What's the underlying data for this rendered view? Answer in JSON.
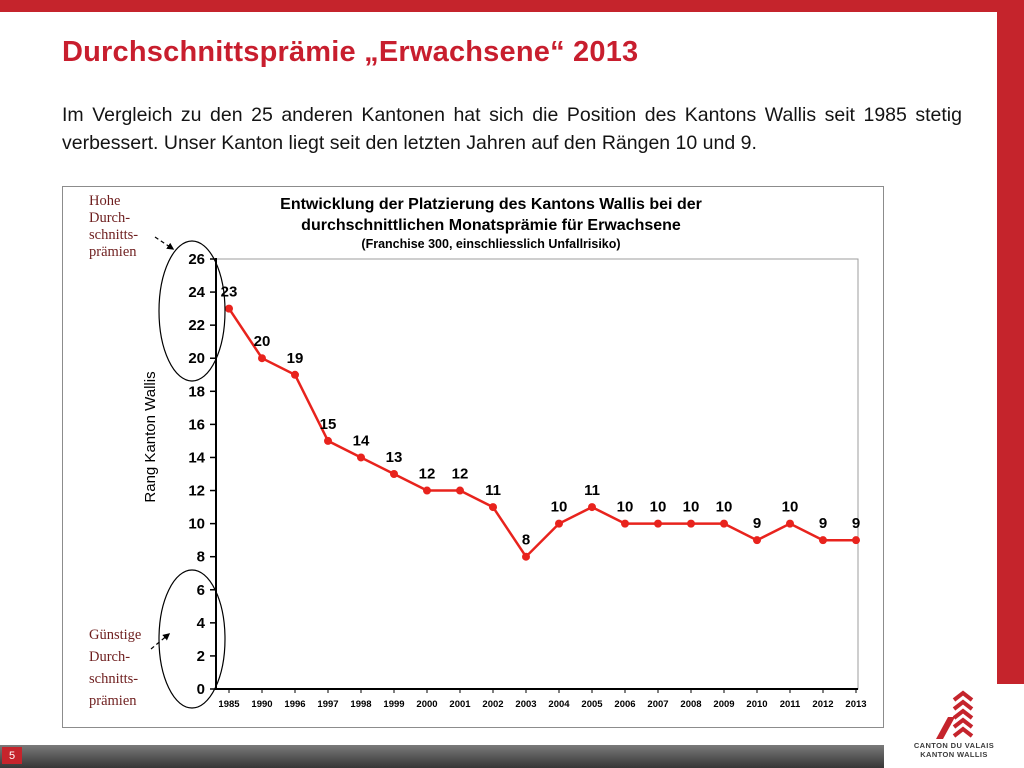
{
  "slide": {
    "title": "Durchschnittsprämie „Erwachsene“ 2013",
    "paragraph": "Im Vergleich zu den 25 anderen Kantonen hat sich die Position des Kantons Wallis seit 1985 stetig verbessert. Unser Kanton liegt seit den letzten Jahren auf den Rängen 10 und 9.",
    "page_number": "5"
  },
  "logo": {
    "line1": "CANTON DU VALAIS",
    "line2": "KANTON WALLIS"
  },
  "colors": {
    "accent_red": "#c5242c",
    "title_red": "#c81e2e",
    "series_red": "#e8231d",
    "annotation_red": "#6e1e1e"
  },
  "chart_data": {
    "type": "line",
    "title_lines": [
      "Entwicklung der Platzierung des Kantons Wallis bei der",
      "durchschnittlichen Monatsprämie für Erwachsene"
    ],
    "subtitle": "(Franchise 300, einschliesslich Unfallrisiko)",
    "ylabel": "Rang Kanton Wallis",
    "categories": [
      "1985",
      "1990",
      "1996",
      "1997",
      "1998",
      "1999",
      "2000",
      "2001",
      "2002",
      "2003",
      "2004",
      "2005",
      "2006",
      "2007",
      "2008",
      "2009",
      "2010",
      "2011",
      "2012",
      "2013"
    ],
    "values": [
      23,
      20,
      19,
      15,
      14,
      13,
      12,
      12,
      11,
      8,
      10,
      11,
      10,
      10,
      10,
      10,
      9,
      10,
      9,
      9
    ],
    "ylim": [
      0,
      26
    ],
    "ytick_step": 2,
    "grid": "off",
    "legend": "none",
    "annotations": {
      "top": [
        "Hohe",
        "Durch-",
        "schnitts-",
        "prämien"
      ],
      "bottom": [
        "Günstige",
        "Durch-",
        "schnitts-",
        "prämien"
      ]
    }
  }
}
